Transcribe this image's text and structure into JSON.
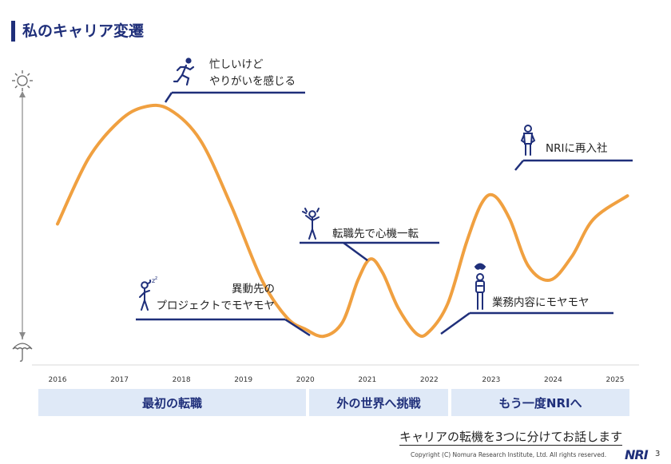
{
  "page": {
    "title": "私のキャリア変遷",
    "footer_note": "キャリアの転機を3つに分けてお話します",
    "copyright": "Copyright (C)  Nomura Research Institute, Ltd. All rights reserved.",
    "logo": "NRI",
    "page_number": "3"
  },
  "phases": [
    {
      "label": "最初の転職"
    },
    {
      "label": "外の世界へ挑戦"
    },
    {
      "label": "もう一度NRIへ"
    }
  ],
  "chart_data": {
    "type": "line",
    "title": "",
    "xlabel": "",
    "ylabel": "",
    "x_ticks": [
      "2016",
      "2017",
      "2018",
      "2019",
      "2020",
      "2021",
      "2022",
      "2023",
      "2024",
      "2025"
    ],
    "xlim": [
      2016,
      2025
    ],
    "ylim": [
      0,
      100
    ],
    "series": [
      {
        "color": "#f0a040",
        "points": [
          [
            2016.0,
            48
          ],
          [
            2016.5,
            76
          ],
          [
            2017.0,
            92
          ],
          [
            2017.4,
            98
          ],
          [
            2017.8,
            97
          ],
          [
            2018.3,
            84
          ],
          [
            2018.8,
            56
          ],
          [
            2019.3,
            24
          ],
          [
            2019.7,
            8
          ],
          [
            2020.0,
            3
          ],
          [
            2020.3,
            0
          ],
          [
            2020.6,
            6
          ],
          [
            2020.85,
            24
          ],
          [
            2021.05,
            33
          ],
          [
            2021.25,
            27
          ],
          [
            2021.5,
            12
          ],
          [
            2021.8,
            1
          ],
          [
            2022.0,
            2
          ],
          [
            2022.3,
            14
          ],
          [
            2022.6,
            40
          ],
          [
            2022.85,
            57
          ],
          [
            2023.05,
            60
          ],
          [
            2023.3,
            50
          ],
          [
            2023.6,
            30
          ],
          [
            2023.95,
            24
          ],
          [
            2024.3,
            34
          ],
          [
            2024.65,
            50
          ],
          [
            2025.2,
            60
          ]
        ]
      }
    ],
    "annotations": [
      {
        "text_lines": [
          "忙しいけど",
          "やりがいを感じる"
        ],
        "icon": "running-person-icon"
      },
      {
        "text_lines": [
          "異動先の",
          "プロジェクトでモヤモヤ"
        ],
        "icon": "tired-person-icon"
      },
      {
        "text_lines": [
          "転職先で心機一転"
        ],
        "icon": "cheering-person-icon"
      },
      {
        "text_lines": [
          "業務内容にモヤモヤ"
        ],
        "icon": "confused-person-icon"
      },
      {
        "text_lines": [
          "NRIに再入社"
        ],
        "icon": "standing-person-icon"
      }
    ],
    "y_axis_icons": {
      "top": "sun-icon",
      "bottom": "umbrella-icon"
    },
    "grid": false,
    "legend": "none"
  }
}
